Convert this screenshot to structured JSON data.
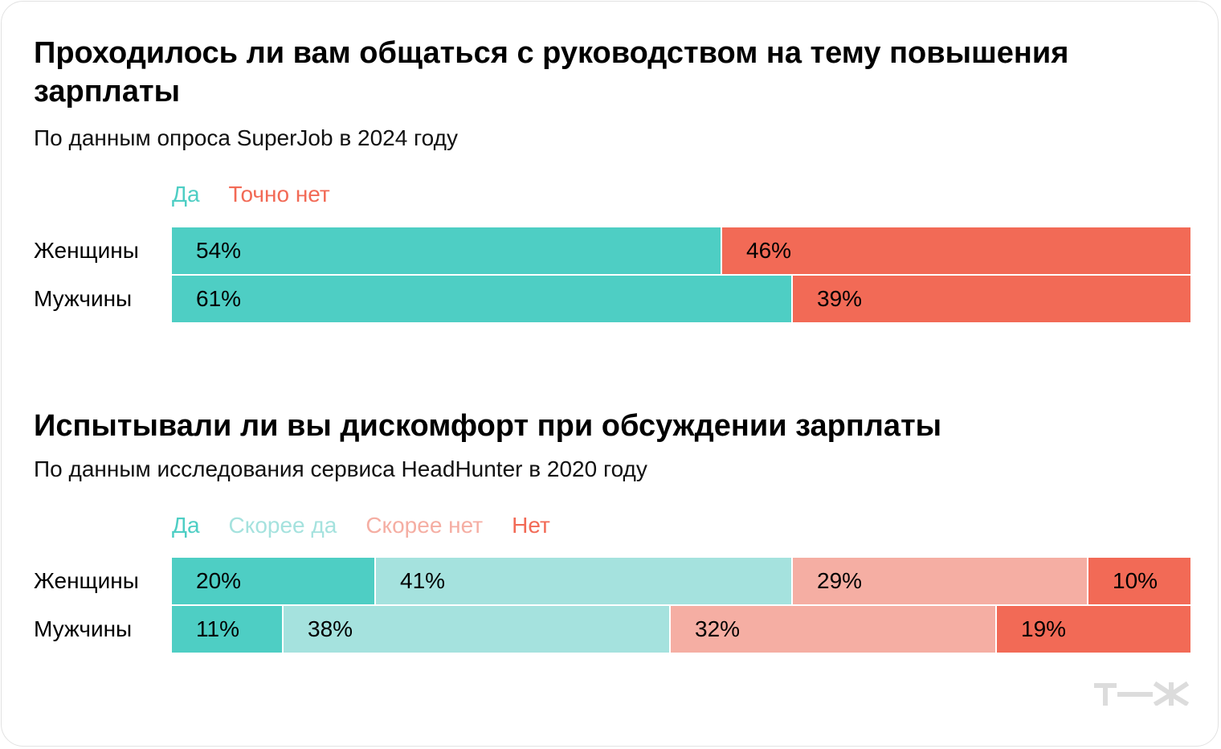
{
  "chart_data": [
    {
      "type": "bar",
      "stacked": "percent",
      "orientation": "horizontal",
      "title": "Проходилось ли вам общаться с руководством на тему повышения зарплаты",
      "subtitle": "По данным опроса SuperJob в 2024 году",
      "categories": [
        "Женщины",
        "Мужчины"
      ],
      "series": [
        {
          "name": "Да",
          "color": "#4ecec4",
          "values": [
            54,
            61
          ]
        },
        {
          "name": "Точно нет",
          "color": "#f26a56",
          "values": [
            46,
            39
          ]
        }
      ],
      "value_suffix": "%",
      "legend": "top-left"
    },
    {
      "type": "bar",
      "stacked": "percent",
      "orientation": "horizontal",
      "title": "Испытывали ли вы дискомфорт при обсуждении зарплаты",
      "subtitle": "По данным исследования сервиса HeadHunter в 2020 году",
      "categories": [
        "Женщины",
        "Мужчины"
      ],
      "series": [
        {
          "name": "Да",
          "color": "#4ecec4",
          "values": [
            20,
            11
          ]
        },
        {
          "name": "Скорее да",
          "color": "#a5e2de",
          "values": [
            41,
            38
          ]
        },
        {
          "name": "Скорее нет",
          "color": "#f5aea3",
          "values": [
            29,
            32
          ]
        },
        {
          "name": "Нет",
          "color": "#f26a56",
          "values": [
            10,
            19
          ]
        }
      ],
      "value_suffix": "%",
      "legend": "top-left"
    }
  ],
  "logo": {
    "name": "tzh-logo",
    "text": "Т—Ж",
    "color": "#dddddd"
  }
}
